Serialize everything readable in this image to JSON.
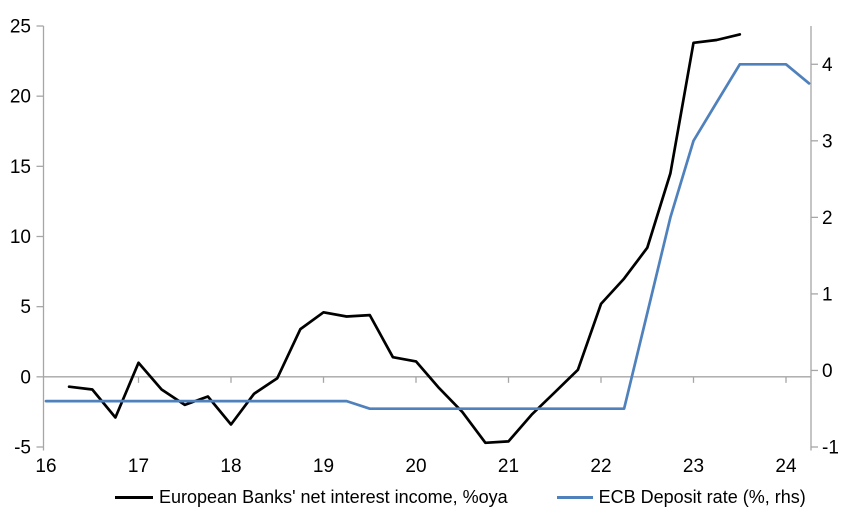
{
  "chart_data": {
    "type": "line",
    "title": "",
    "x_axis": {
      "min": 16,
      "max": 24.3,
      "tick_values": [
        16,
        17,
        18,
        19,
        20,
        21,
        22,
        23,
        24
      ],
      "tick_labels": [
        "16",
        "17",
        "18",
        "19",
        "20",
        "21",
        "22",
        "23",
        "24"
      ]
    },
    "left_axis": {
      "min": -5,
      "max": 25,
      "ticks": [
        25,
        20,
        15,
        10,
        5,
        0,
        -5
      ],
      "tick_labels": [
        "25",
        "20",
        "15",
        "10",
        "5",
        "0",
        "-5"
      ]
    },
    "right_axis": {
      "min": -1,
      "max": 4.5,
      "ticks": [
        4,
        3,
        2,
        1,
        0,
        -1
      ],
      "tick_labels": [
        "4",
        "3",
        "2",
        "1",
        "0",
        "-1"
      ]
    },
    "grid": "zero-line-only",
    "legend_position": "bottom",
    "series": [
      {
        "name": "European Banks' net interest income, %oya",
        "axis": "left",
        "color": "#000000",
        "x": [
          16.25,
          16.5,
          16.75,
          17.0,
          17.25,
          17.5,
          17.75,
          18.0,
          18.25,
          18.5,
          18.75,
          19.0,
          19.25,
          19.5,
          19.75,
          20.0,
          20.25,
          20.5,
          20.75,
          21.0,
          21.25,
          21.5,
          21.75,
          22.0,
          22.25,
          22.5,
          22.75,
          23.0,
          23.25,
          23.5
        ],
        "values": [
          -0.7,
          -0.9,
          -2.9,
          1.0,
          -0.9,
          -2.0,
          -1.4,
          -3.4,
          -1.2,
          -0.1,
          3.4,
          4.6,
          4.3,
          4.4,
          1.4,
          1.1,
          -0.8,
          -2.5,
          -4.7,
          -4.6,
          -2.7,
          -1.1,
          0.5,
          5.2,
          7.0,
          9.2,
          14.5,
          23.8,
          24.0,
          24.4
        ]
      },
      {
        "name": "ECB Deposit rate (%, rhs)",
        "axis": "right",
        "color": "#4f81bd",
        "x": [
          16.0,
          16.25,
          16.5,
          16.75,
          17.0,
          17.25,
          17.5,
          17.75,
          18.0,
          18.25,
          18.5,
          18.75,
          19.0,
          19.25,
          19.5,
          19.75,
          20.0,
          20.25,
          20.5,
          20.75,
          21.0,
          21.25,
          21.5,
          21.75,
          22.0,
          22.25,
          22.5,
          22.75,
          23.0,
          23.25,
          23.5,
          23.75,
          24.0,
          24.25
        ],
        "values": [
          -0.4,
          -0.4,
          -0.4,
          -0.4,
          -0.4,
          -0.4,
          -0.4,
          -0.4,
          -0.4,
          -0.4,
          -0.4,
          -0.4,
          -0.4,
          -0.4,
          -0.5,
          -0.5,
          -0.5,
          -0.5,
          -0.5,
          -0.5,
          -0.5,
          -0.5,
          -0.5,
          -0.5,
          -0.5,
          -0.5,
          0.75,
          2.0,
          3.0,
          3.5,
          4.0,
          4.0,
          4.0,
          3.75
        ]
      }
    ]
  },
  "colors": {
    "background": "#ffffff",
    "axis": "#a6a6a6",
    "gridline": "#a6a6a6",
    "text": "#000000"
  },
  "legend": {
    "items": [
      {
        "label": "European Banks' net interest income, %oya"
      },
      {
        "label": "ECB Deposit rate (%, rhs)"
      }
    ]
  }
}
